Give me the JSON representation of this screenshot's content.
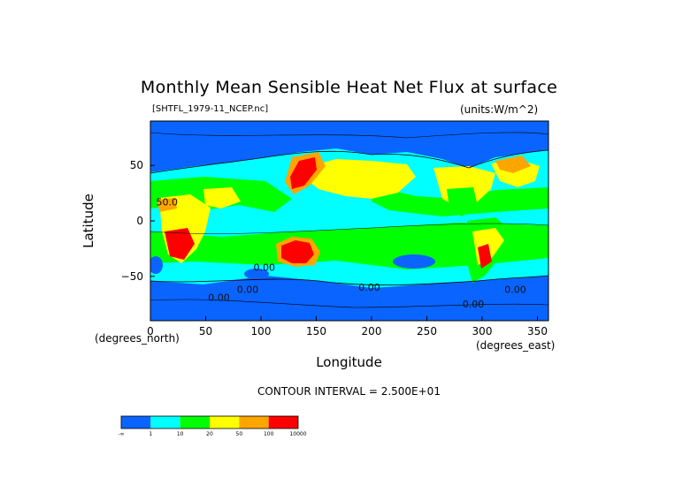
{
  "chart_data": {
    "type": "heatmap",
    "title": "Monthly Mean Sensible Heat Net Flux at surface",
    "file_label": "[SHTFL_1979-11_NCEP.nc]",
    "units_label": "(units:W/m^2)",
    "xlabel": "Longitude",
    "xlabel_sub_left": "(degrees_north)",
    "xlabel_sub_right": "(degrees_east)",
    "ylabel": "Latitude",
    "xlim": [
      0,
      360
    ],
    "ylim": [
      -90,
      90
    ],
    "xticks": [
      0,
      50,
      100,
      150,
      200,
      250,
      300,
      350
    ],
    "xtick_labels": [
      "0",
      "50",
      "100",
      "150",
      "200",
      "250",
      "300",
      "350"
    ],
    "yticks": [
      50,
      0,
      -50
    ],
    "ytick_labels": [
      "50",
      "0",
      "−50"
    ],
    "contour_interval": "CONTOUR INTERVAL = 2.500E+01",
    "contour_labels": [
      {
        "text": "50.0",
        "lon": 15,
        "lat": 14
      },
      {
        "text": "0.00",
        "lon": 103,
        "lat": -45
      },
      {
        "text": "0.00",
        "lon": 88,
        "lat": -65
      },
      {
        "text": "0.00",
        "lon": 62,
        "lat": -72
      },
      {
        "text": "0.00",
        "lon": 198,
        "lat": -63
      },
      {
        "text": "0.00",
        "lon": 330,
        "lat": -65
      },
      {
        "text": "0.00",
        "lon": 292,
        "lat": -78
      }
    ],
    "colorbar": {
      "colors": [
        "#0a64ff",
        "#00ffff",
        "#00ff00",
        "#ffff00",
        "#ffa500",
        "#ff0000"
      ],
      "tick_labels": [
        "-∞",
        "1",
        "10",
        "20",
        "50",
        "100",
        "10000"
      ]
    }
  }
}
